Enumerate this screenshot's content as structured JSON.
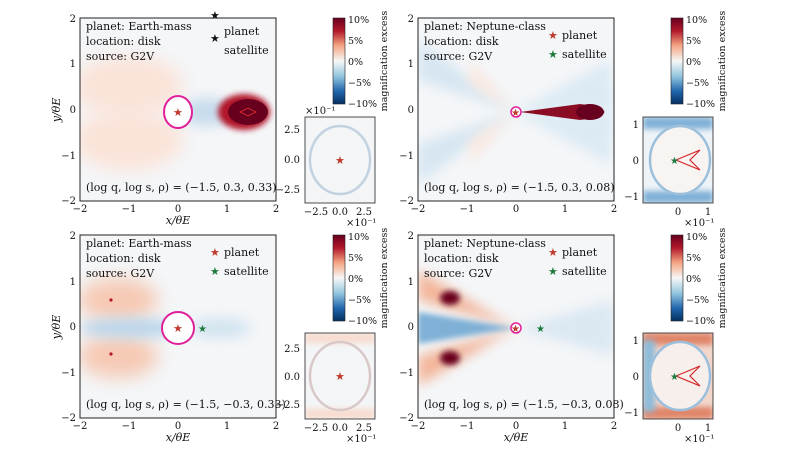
{
  "chart_data": [
    {
      "type": "heatmap",
      "xlabel": "x/θE",
      "ylabel": "y/θE",
      "xlim": [
        -2,
        2
      ],
      "ylim": [
        -2,
        2
      ],
      "xticks": [
        "−2",
        "−1",
        "0",
        "1",
        "2"
      ],
      "yticks": [
        "2",
        "1",
        "0",
        "−1",
        "−2"
      ],
      "info": [
        "planet:   Earth-mass",
        "location: disk",
        "source:   G2V"
      ],
      "legend": [
        "planet",
        "satellite"
      ],
      "params": "(log q, log s, ρ) = (−1.5, 0.3, 0.33)",
      "log_q": -1.5,
      "log_s": 0.3,
      "rho": 0.33,
      "planet_marker": [
        0.0,
        0.0
      ],
      "satellite_marker": [
        0.0,
        0.0
      ],
      "source_circle_center": [
        0.0,
        0.0
      ],
      "colorbar": {
        "label": "magnification excess",
        "ticks": [
          "10%",
          "5%",
          "0%",
          "−5%",
          "−10%"
        ],
        "range_percent": [
          -10,
          10
        ],
        "scale": ""
      },
      "inset": {
        "xticks": [
          "−2.5",
          "0.0",
          "2.5"
        ],
        "yticks": [
          "2.5",
          "0.0",
          "−2.5"
        ],
        "xscale": "×10⁻¹",
        "yscale": "×10⁻¹",
        "lim": [
          -4,
          4
        ]
      }
    },
    {
      "type": "heatmap",
      "xlabel": "",
      "ylabel": "",
      "xlim": [
        -2,
        2
      ],
      "ylim": [
        -2,
        2
      ],
      "xticks": [
        "−2",
        "−1",
        "0",
        "1",
        "2"
      ],
      "yticks": [
        "2",
        "1",
        "0",
        "−1",
        "−2"
      ],
      "info": [
        "planet:   Neptune-class",
        "location: disk",
        "source:   G2V"
      ],
      "legend": [
        "planet",
        "satellite"
      ],
      "params": "(log q, log s, ρ) = (−1.5, 0.3, 0.08)",
      "log_q": -1.5,
      "log_s": 0.3,
      "rho": 0.08,
      "planet_marker": [
        0.0,
        0.0
      ],
      "satellite_marker": [
        0.0,
        0.0
      ],
      "source_circle_center": [
        0.0,
        0.0
      ],
      "colorbar": {
        "label": "magnification excess",
        "ticks": [
          "10%",
          "5%",
          "0%",
          "−5%",
          "−10%"
        ],
        "range_percent": [
          -10,
          10
        ],
        "scale": ""
      },
      "inset": {
        "xticks": [
          "0",
          "1"
        ],
        "yticks": [
          "1",
          "0",
          "−1"
        ],
        "xscale": "×10⁻¹",
        "yscale": "",
        "lim": [
          -1.1,
          1.1
        ]
      }
    },
    {
      "type": "heatmap",
      "xlabel": "x/θE",
      "ylabel": "y/θE",
      "xlim": [
        -2,
        2
      ],
      "ylim": [
        -2,
        2
      ],
      "xticks": [
        "−2",
        "−1",
        "0",
        "1",
        "2"
      ],
      "yticks": [
        "2",
        "1",
        "0",
        "−1",
        "−2"
      ],
      "info": [
        "planet:   Earth-mass",
        "location: disk",
        "source:   G2V"
      ],
      "legend": [
        "planet",
        "satellite"
      ],
      "params": "(log q, log s, ρ) = (−1.5, −0.3, 0.33)",
      "log_q": -1.5,
      "log_s": -0.3,
      "rho": 0.33,
      "planet_marker": [
        0.0,
        0.0
      ],
      "satellite_marker": [
        0.5,
        0.0
      ],
      "source_circle_center": [
        0.0,
        0.0
      ],
      "colorbar": {
        "label": "magnification excess",
        "ticks": [
          "10%",
          "5%",
          "0%",
          "−5%",
          "−10%"
        ],
        "range_percent": [
          -10,
          10
        ],
        "scale": ""
      },
      "inset": {
        "xticks": [
          "−2.5",
          "0.0",
          "2.5"
        ],
        "yticks": [
          "2.5",
          "0.0",
          "−2.5"
        ],
        "xscale": "×10⁻¹",
        "yscale": "×10⁻¹",
        "lim": [
          -4,
          4
        ]
      }
    },
    {
      "type": "heatmap",
      "xlabel": "x/θE",
      "ylabel": "",
      "xlim": [
        -2,
        2
      ],
      "ylim": [
        -2,
        2
      ],
      "xticks": [
        "−2",
        "−1",
        "0",
        "1",
        "2"
      ],
      "yticks": [
        "2",
        "1",
        "0",
        "−1",
        "−2"
      ],
      "info": [
        "planet:   Neptune-class",
        "location: disk",
        "source:   G2V"
      ],
      "legend": [
        "planet",
        "satellite"
      ],
      "params": "(log q, log s, ρ) = (−1.5, −0.3, 0.08)",
      "log_q": -1.5,
      "log_s": -0.3,
      "rho": 0.08,
      "planet_marker": [
        0.0,
        0.0
      ],
      "satellite_marker": [
        0.5,
        0.0
      ],
      "source_circle_center": [
        0.0,
        0.0
      ],
      "colorbar": {
        "label": "magnification excess",
        "ticks": [
          "10%",
          "5%",
          "0%",
          "−5%",
          "−10%"
        ],
        "range_percent": [
          -10,
          10
        ],
        "scale": ""
      },
      "inset": {
        "xticks": [
          "0",
          "1"
        ],
        "yticks": [
          "1",
          "0",
          "−1"
        ],
        "xscale": "×10⁻¹",
        "yscale": "",
        "lim": [
          -1.1,
          1.1
        ]
      }
    }
  ],
  "palette": {
    "deep_red": "#67001f",
    "red": "#b2182b",
    "pink": "#f4a582",
    "white": "#f7f7f7",
    "light_blue": "#92c5de",
    "blue": "#2166ac",
    "deep_blue": "#053061",
    "circle": "#e0209a",
    "planet_star": "#c0392b",
    "satellite_star": "#1e7a3c",
    "caustic": "#d62728"
  }
}
